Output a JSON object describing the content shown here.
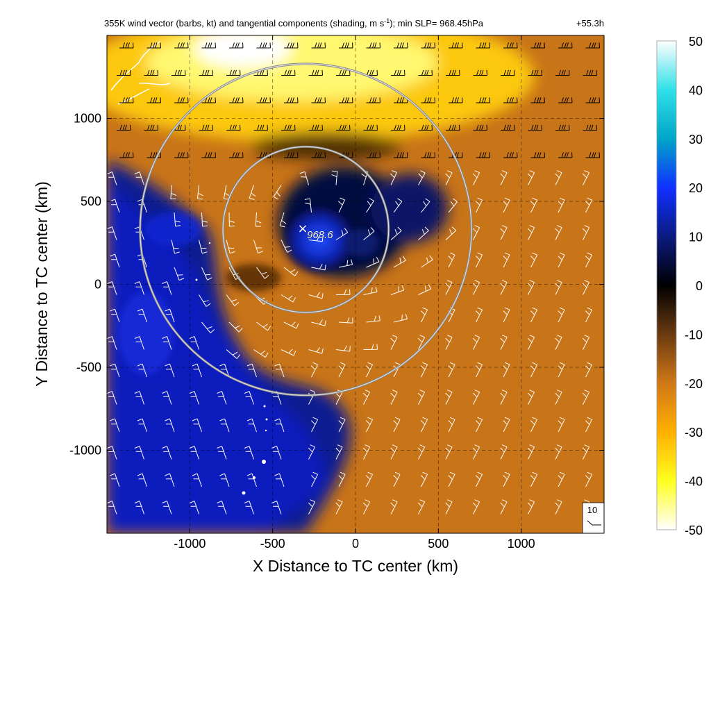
{
  "chart_data": {
    "type": "heatmap",
    "title": "355K wind vector (barbs, kt) and tangential components (shading, m s",
    "title_superscript": "-1",
    "title_suffix": "); min SLP= 968.45hPa",
    "forecast_time": "+55.3h",
    "xlabel": "X Distance to TC center (km)",
    "ylabel": "Y Distance to TC center (km)",
    "xlim": [
      -1500,
      1500
    ],
    "ylim": [
      -1500,
      1500
    ],
    "x_ticks": [
      "-1000",
      "-500",
      "0",
      "500",
      "1000"
    ],
    "x_tick_values": [
      -1000,
      -500,
      0,
      500,
      1000
    ],
    "y_ticks": [
      "1000",
      "500",
      "0",
      "-500",
      "-1000"
    ],
    "y_tick_values": [
      1000,
      500,
      0,
      -500,
      -1000
    ],
    "grid": "dashed, every 500 km",
    "colorbar": {
      "ticks": [
        "50",
        "40",
        "30",
        "20",
        "10",
        "0",
        "-10",
        "-20",
        "-30",
        "-40",
        "-50"
      ],
      "tick_values": [
        50,
        40,
        30,
        20,
        10,
        0,
        -10,
        -20,
        -30,
        -40,
        -50
      ],
      "range": [
        -50,
        50
      ],
      "colors": {
        "50": "#ffffff",
        "40": "#30e0e8",
        "30": "#00a6c8",
        "20": "#1030ff",
        "10": "#0a1a80",
        "0": "#000000",
        "-10": "#6a3a10",
        "-20": "#d07818",
        "-30": "#ffb000",
        "-40": "#ffff20",
        "-50": "#ffffff"
      }
    },
    "center": {
      "symbol": "×",
      "label": "968.6",
      "x": -300,
      "y": 330
    },
    "circles": [
      {
        "x": -300,
        "y": 330,
        "radius_km": 500
      },
      {
        "x": -300,
        "y": 330,
        "radius_km": 1000
      }
    ],
    "reference_vector": {
      "label": "10"
    },
    "field_regions": [
      {
        "name": "strong easterly tangential core",
        "sign": "negative",
        "peak": -48,
        "x": 0,
        "y": 1250
      },
      {
        "name": "positive tangential core",
        "sign": "positive",
        "peak": 25,
        "x": -300,
        "y": 350
      },
      {
        "name": "west/southwest positive region",
        "sign": "positive",
        "peak": 12,
        "x": -1100,
        "y": 0
      }
    ]
  }
}
